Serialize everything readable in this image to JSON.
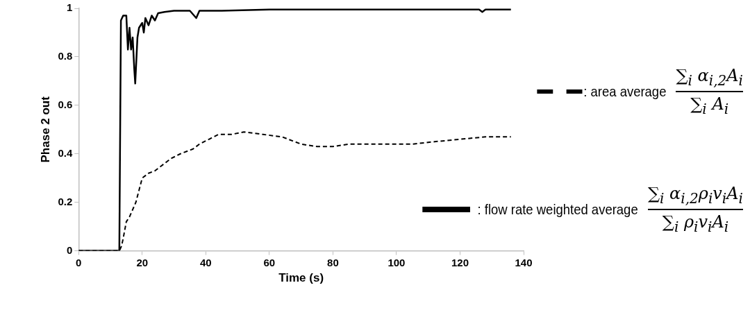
{
  "chart_data": {
    "type": "line",
    "xlabel": "Time (s)",
    "ylabel": "Phase 2 out",
    "xlim": [
      0,
      140
    ],
    "xticks": [
      0,
      20,
      40,
      60,
      80,
      100,
      120,
      140
    ],
    "ylim": [
      0,
      1
    ],
    "yticks": [
      0,
      0.2,
      0.4,
      0.6,
      0.8,
      1
    ],
    "grid": false,
    "legend": "right",
    "marker": "none",
    "series": [
      {
        "name": ": area average",
        "color": "#000000",
        "line_style": "dashed",
        "x": [
          0,
          12.8,
          13.5,
          14,
          15,
          16,
          17,
          18,
          19,
          20,
          22,
          24,
          26,
          29,
          32,
          36,
          38,
          41,
          44,
          48,
          52,
          58,
          64,
          70,
          75,
          80,
          85,
          95,
          105,
          112,
          120,
          128,
          136
        ],
        "values": [
          0,
          0,
          0.02,
          0.05,
          0.12,
          0.14,
          0.17,
          0.2,
          0.25,
          0.3,
          0.32,
          0.33,
          0.35,
          0.38,
          0.4,
          0.42,
          0.44,
          0.46,
          0.48,
          0.48,
          0.49,
          0.48,
          0.47,
          0.44,
          0.43,
          0.43,
          0.44,
          0.44,
          0.44,
          0.45,
          0.46,
          0.47,
          0.47
        ]
      },
      {
        "name": ": flow rate weighted average",
        "color": "#000000",
        "line_style": "solid",
        "x": [
          0,
          12.8,
          13.3,
          14,
          15,
          15.5,
          16,
          16.5,
          17,
          17.5,
          17.8,
          18.5,
          19,
          20,
          20.5,
          21,
          22,
          23,
          24,
          25,
          27,
          30,
          35,
          37,
          38,
          45,
          60,
          80,
          100,
          120,
          126,
          127,
          128,
          136
        ],
        "values": [
          0,
          0,
          0.95,
          0.97,
          0.97,
          0.83,
          0.92,
          0.83,
          0.88,
          0.75,
          0.69,
          0.88,
          0.92,
          0.94,
          0.9,
          0.96,
          0.93,
          0.97,
          0.95,
          0.98,
          0.985,
          0.99,
          0.99,
          0.96,
          0.99,
          0.99,
          0.995,
          0.995,
          0.995,
          0.995,
          0.995,
          0.985,
          0.995,
          0.995
        ]
      }
    ],
    "annotations": [
      "∑$_{i}$ α$_{i,2}$A$_{i}$",
      "∑$_{i}$ A$_{i}$",
      "∑$_{i}$ α$_{i,2}$ρ$_{i}$v$_{i}$A$_{i}$",
      "∑$_{i}$ ρ$_{i}$v$_{i}$A$_{i}$"
    ]
  }
}
